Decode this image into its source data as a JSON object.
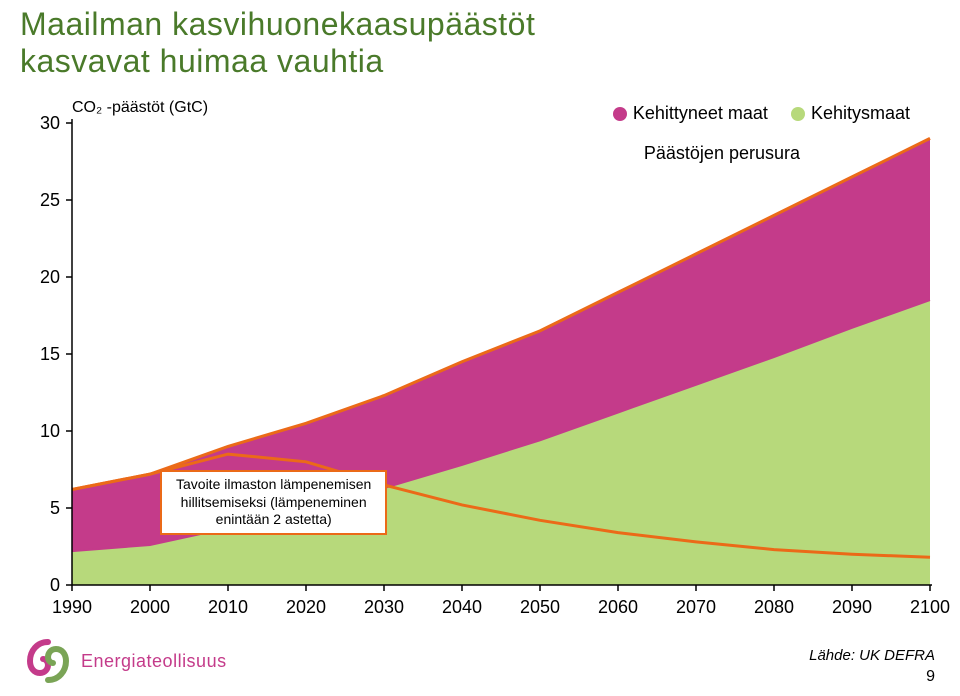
{
  "title_line1": "Maailman kasvihuonekaasupäästöt",
  "title_line2": "kasvavat huimaa vauhtia",
  "title_color": "#4a7a2a",
  "title_fontsize": 32,
  "chart": {
    "type": "area",
    "background_color": "#ffffff",
    "axis_color": "#000000",
    "axis_stroke": 1.5,
    "y_title": "CO₂ -päästöt (GtC)",
    "y_title_fontsize": 16,
    "ylim": [
      0,
      30
    ],
    "xlim": [
      1990,
      2100
    ],
    "yticks": [
      0,
      5,
      10,
      15,
      20,
      25,
      30
    ],
    "xticks": [
      1990,
      2000,
      2010,
      2020,
      2030,
      2040,
      2050,
      2060,
      2070,
      2080,
      2090,
      2100
    ],
    "tick_fontsize": 18,
    "legend": {
      "items": [
        {
          "label": "Kehittyneet maat",
          "color": "#c43b8a"
        },
        {
          "label": "Kehitysmaat",
          "color": "#b7d97b"
        }
      ],
      "fontsize": 18,
      "dot_size": 14
    },
    "baseline_label": "Päästöjen perusura",
    "baseline_fontsize": 18,
    "baseline_color": "#eb6a18",
    "baseline_stroke": 3,
    "baseline_series": {
      "x": [
        1990,
        2000,
        2010,
        2020,
        2030,
        2040,
        2050,
        2060,
        2070,
        2080,
        2090,
        2100
      ],
      "total": [
        6.2,
        7.2,
        9.0,
        10.5,
        12.3,
        14.5,
        16.5,
        19.0,
        21.5,
        24.0,
        26.5,
        29.0
      ],
      "developed_share": [
        4.0,
        4.6,
        5.3,
        5.7,
        6.0,
        6.7,
        7.1,
        7.8,
        8.5,
        9.2,
        9.8,
        10.5
      ]
    },
    "target_series": {
      "color": "#eb6a18",
      "stroke": 3,
      "x": [
        1990,
        2000,
        2010,
        2020,
        2030,
        2040,
        2050,
        2060,
        2070,
        2080,
        2090,
        2100
      ],
      "y": [
        6.2,
        7.2,
        8.5,
        8.0,
        6.5,
        5.2,
        4.2,
        3.4,
        2.8,
        2.3,
        2.0,
        1.8
      ]
    },
    "area_colors": {
      "developed": "#c43b8a",
      "developing": "#b7d97b"
    }
  },
  "annotation": {
    "line1": "Tavoite ilmaston lämpenemisen",
    "line2": "hillitsemiseksi (lämpeneminen",
    "line3": "enintään 2 astetta)",
    "border_color": "#eb6a18",
    "fontsize": 14
  },
  "logo": {
    "text": "Energiateollisuus",
    "text_color": "#c43b8a",
    "swirl_colors": [
      "#c43b8a",
      "#7aa456"
    ]
  },
  "source": "Lähde: UK DEFRA",
  "page_number": "9"
}
